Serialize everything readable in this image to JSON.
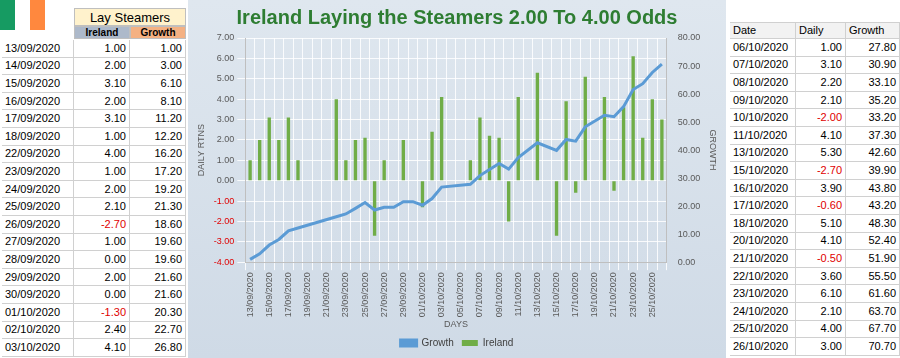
{
  "header": {
    "title": "Lay Steamers",
    "columns": [
      "Ireland",
      "Growth"
    ]
  },
  "left_table": {
    "rows": [
      [
        "13/09/2020",
        "1.00",
        "1.00"
      ],
      [
        "14/09/2020",
        "2.00",
        "3.00"
      ],
      [
        "15/09/2020",
        "3.10",
        "6.10"
      ],
      [
        "16/09/2020",
        "2.00",
        "8.10"
      ],
      [
        "17/09/2020",
        "3.10",
        "11.20"
      ],
      [
        "18/09/2020",
        "1.00",
        "12.20"
      ],
      [
        "22/09/2020",
        "4.00",
        "16.20"
      ],
      [
        "23/09/2020",
        "1.00",
        "17.20"
      ],
      [
        "24/09/2020",
        "2.00",
        "19.20"
      ],
      [
        "25/09/2020",
        "2.10",
        "21.30"
      ],
      [
        "26/09/2020",
        "-2.70",
        "18.60"
      ],
      [
        "27/09/2020",
        "1.00",
        "19.60"
      ],
      [
        "28/09/2020",
        "0.00",
        "19.60"
      ],
      [
        "29/09/2020",
        "2.00",
        "21.60"
      ],
      [
        "30/09/2020",
        "0.00",
        "21.60"
      ],
      [
        "01/10/2020",
        "-1.30",
        "20.30"
      ],
      [
        "02/10/2020",
        "2.40",
        "22.70"
      ],
      [
        "03/10/2020",
        "4.10",
        "26.80"
      ]
    ]
  },
  "right_table": {
    "columns": [
      "Date",
      "Daily",
      "Growth"
    ],
    "rows": [
      [
        "06/10/2020",
        "1.00",
        "27.80"
      ],
      [
        "07/10/2020",
        "3.10",
        "30.90"
      ],
      [
        "08/10/2020",
        "2.20",
        "33.10"
      ],
      [
        "09/10/2020",
        "2.10",
        "35.20"
      ],
      [
        "10/10/2020",
        "-2.00",
        "33.20"
      ],
      [
        "11/10/2020",
        "4.10",
        "37.30"
      ],
      [
        "13/10/2020",
        "5.30",
        "42.60"
      ],
      [
        "15/10/2020",
        "-2.70",
        "39.90"
      ],
      [
        "16/10/2020",
        "3.90",
        "43.80"
      ],
      [
        "17/10/2020",
        "-0.60",
        "43.20"
      ],
      [
        "18/10/2020",
        "5.10",
        "48.30"
      ],
      [
        "20/10/2020",
        "4.10",
        "52.40"
      ],
      [
        "21/10/2020",
        "-0.50",
        "51.90"
      ],
      [
        "22/10/2020",
        "3.60",
        "55.50"
      ],
      [
        "23/10/2020",
        "6.10",
        "61.60"
      ],
      [
        "24/10/2020",
        "2.10",
        "63.70"
      ],
      [
        "25/10/2020",
        "4.00",
        "67.70"
      ],
      [
        "26/10/2020",
        "3.00",
        "70.70"
      ]
    ]
  },
  "chart_data": {
    "type": "bar",
    "title": "Ireland Laying the Steamers 2.00 To 4.00 Odds",
    "x_label": "DAYS",
    "y_label": "DAILY RTNS",
    "y2_label": "GROWTH",
    "categories": [
      "13/09/2020",
      null,
      "15/09/2020",
      null,
      "17/09/2020",
      null,
      "19/09/2020",
      null,
      "21/09/2020",
      null,
      "23/09/2020",
      null,
      "25/09/2020",
      null,
      "27/09/2020",
      null,
      "29/09/2020",
      null,
      "01/10/2020",
      null,
      "03/10/2020",
      null,
      "05/10/2020",
      null,
      "07/10/2020",
      null,
      "09/10/2020",
      null,
      "11/10/2020",
      null,
      "13/10/2020",
      null,
      "15/10/2020",
      null,
      "17/10/2020",
      null,
      "19/10/2020",
      null,
      "21/10/2020",
      null,
      "23/10/2020",
      null,
      "25/10/2020",
      null
    ],
    "series": [
      {
        "name": "Ireland",
        "type": "bar",
        "color": "#70ad47",
        "values": [
          1.0,
          2.0,
          3.1,
          2.0,
          3.1,
          1.0,
          null,
          null,
          null,
          4.0,
          1.0,
          2.0,
          2.1,
          -2.7,
          1.0,
          0.0,
          2.0,
          0.0,
          -1.3,
          2.4,
          4.1,
          null,
          null,
          1.0,
          3.1,
          2.2,
          2.1,
          -2.0,
          4.1,
          null,
          5.3,
          null,
          -2.7,
          3.9,
          -0.6,
          5.1,
          null,
          4.1,
          -0.5,
          3.6,
          6.1,
          2.1,
          4.0,
          3.0
        ]
      },
      {
        "name": "Growth",
        "type": "line",
        "color": "#5b9bd5",
        "axis": "y2",
        "values": [
          1.0,
          3.0,
          6.1,
          8.1,
          11.2,
          12.2,
          null,
          null,
          null,
          16.2,
          17.2,
          19.2,
          21.3,
          18.6,
          19.6,
          19.6,
          21.6,
          21.6,
          20.3,
          22.7,
          26.8,
          null,
          null,
          27.8,
          30.9,
          33.1,
          35.2,
          33.2,
          37.3,
          null,
          42.6,
          null,
          39.9,
          43.8,
          43.2,
          48.3,
          null,
          52.4,
          51.9,
          55.5,
          61.6,
          63.7,
          67.7,
          70.7
        ]
      }
    ],
    "ylim": [
      -4,
      7
    ],
    "yticks": [
      {
        "value": -4,
        "label": "-4.00"
      },
      {
        "value": -3,
        "label": "-3.00"
      },
      {
        "value": -2,
        "label": "-2.00"
      },
      {
        "value": -1,
        "label": "-1.00"
      },
      {
        "value": 0,
        "label": "0.00"
      },
      {
        "value": 1,
        "label": "1.00"
      },
      {
        "value": 2,
        "label": "2.00"
      },
      {
        "value": 3,
        "label": "3.00"
      },
      {
        "value": 4,
        "label": "4.00"
      },
      {
        "value": 5,
        "label": "5.00"
      },
      {
        "value": 6,
        "label": "6.00"
      },
      {
        "value": 7,
        "label": "7.00"
      }
    ],
    "y2lim": [
      0,
      80
    ],
    "y2ticks": [
      {
        "value": 0,
        "label": "0.00"
      },
      {
        "value": 10,
        "label": "10.00"
      },
      {
        "value": 20,
        "label": "20.00"
      },
      {
        "value": 30,
        "label": "30.00"
      },
      {
        "value": 40,
        "label": "40.00"
      },
      {
        "value": 50,
        "label": "50.00"
      },
      {
        "value": 60,
        "label": "60.00"
      },
      {
        "value": 70,
        "label": "70.00"
      },
      {
        "value": 80,
        "label": "80.00"
      }
    ],
    "grid": true,
    "legend": "bottom"
  }
}
